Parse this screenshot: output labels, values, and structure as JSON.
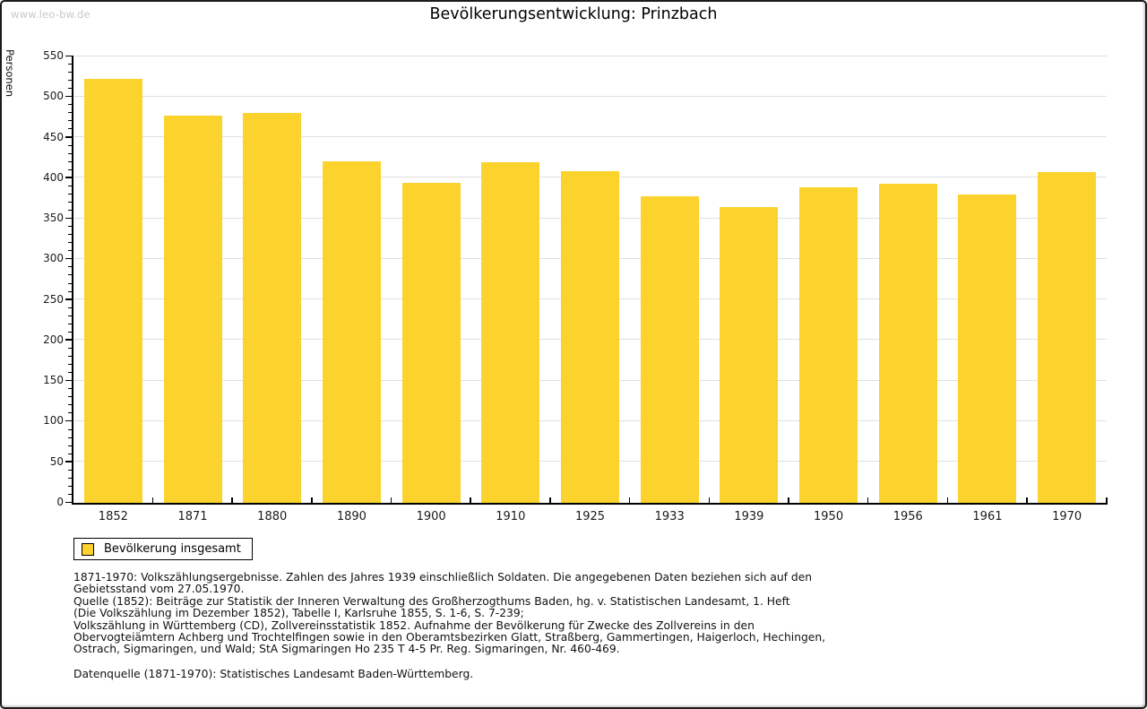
{
  "watermark": "www.leo-bw.de",
  "title": "Bevölkerungsentwicklung: Prinzbach",
  "chart_data": {
    "type": "bar",
    "title": "Bevölkerungsentwicklung: Prinzbach",
    "ylabel": "Personen",
    "xlabel": "",
    "categories": [
      "1852",
      "1871",
      "1880",
      "1890",
      "1900",
      "1910",
      "1925",
      "1933",
      "1939",
      "1950",
      "1956",
      "1961",
      "1970"
    ],
    "series": [
      {
        "name": "Bevölkerung insgesamt",
        "values": [
          522,
          477,
          480,
          421,
          394,
          420,
          409,
          378,
          365,
          389,
          393,
          380,
          407
        ]
      }
    ],
    "ylim": [
      0,
      550
    ],
    "ytick_step": 50,
    "ytick_minor_step": 10,
    "grid": true,
    "bar_color": "#fcd32d",
    "legend_position": "bottom-left"
  },
  "legend": {
    "label": "Bevölkerung insgesamt",
    "swatch_color": "#fcd32d"
  },
  "footnotes": {
    "lines": [
      "1871-1970: Volkszählungsergebnisse. Zahlen des Jahres 1939 einschließlich Soldaten. Die angegebenen Daten beziehen sich auf den",
      "Gebietsstand vom 27.05.1970.",
      "Quelle (1852): Beiträge zur Statistik der Inneren Verwaltung des Großherzogthums Baden, hg. v. Statistischen Landesamt, 1. Heft",
      "(Die Volkszählung im Dezember 1852), Tabelle I, Karlsruhe 1855, S. 1-6, S. 7-239;",
      "Volkszählung in Württemberg (CD), Zollvereinsstatistik 1852. Aufnahme der Bevölkerung für Zwecke des Zollvereins in den",
      "Obervogteiämtern Achberg und Trochtelfingen sowie in den Oberamtsbezirken Glatt, Straßberg, Gammertingen, Haigerloch, Hechingen,",
      "Ostrach, Sigmaringen, und Wald; StA Sigmaringen Ho 235 T 4-5 Pr. Reg. Sigmaringen, Nr. 460-469."
    ],
    "datasource": "Datenquelle (1871-1970): Statistisches Landesamt Baden-Württemberg."
  }
}
